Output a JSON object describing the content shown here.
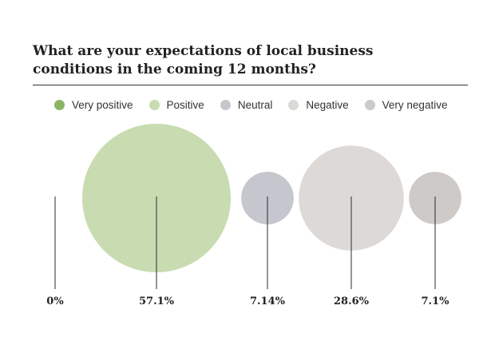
{
  "chart_data": {
    "type": "bubble",
    "title": "What are your expectations of local business conditions in the coming 12 months?",
    "categories": [
      "Very positive",
      "Positive",
      "Neutral",
      "Negative",
      "Very negative"
    ],
    "values": [
      0,
      57.1,
      7.14,
      28.6,
      7.1
    ],
    "value_labels": [
      "0%",
      "57.1%",
      "7.14%",
      "28.6%",
      "7.1%"
    ],
    "colors": [
      "#8db567",
      "#c8dbb1",
      "#c6c7ce",
      "#dcd9d7",
      "#cdcac7"
    ],
    "legend_position": "top",
    "grid": false
  }
}
